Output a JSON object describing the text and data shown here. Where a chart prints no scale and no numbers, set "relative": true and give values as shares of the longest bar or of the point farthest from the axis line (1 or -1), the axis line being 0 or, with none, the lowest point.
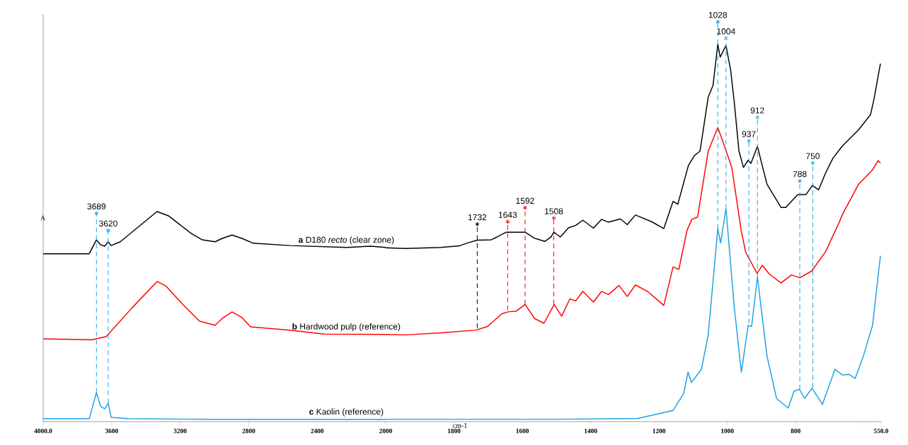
{
  "chart_data": [
    {
      "type": "line",
      "relative": true,
      "tick_labels": "x",
      "ylabel": "A",
      "xlim": [
        4000,
        2000
      ],
      "xticks": [
        {
          "value": 4000,
          "label": "4000.0"
        },
        3600,
        3200,
        2800,
        2400,
        2000
      ],
      "series": [
        {
          "name": "**a** D180 *recto* (clear zone)",
          "color": "#000000",
          "x": [
            4000,
            3731,
            3689,
            3665,
            3641,
            3620,
            3603,
            3550,
            3335,
            3269,
            3136,
            3070,
            2996,
            2955,
            2897,
            2839,
            2773,
            2558,
            2227,
            2087,
            2000
          ],
          "values": [
            0.799,
            0.799,
            0.865,
            0.842,
            0.835,
            0.856,
            0.838,
            0.856,
            1.0,
            0.98,
            0.896,
            0.865,
            0.856,
            0.872,
            0.888,
            0.872,
            0.849,
            0.838,
            0.829,
            0.835,
            0.829
          ]
        },
        {
          "name": "**b** Hardwood pulp (reference)",
          "color": "#ff0000",
          "x": [
            4000,
            3715,
            3632,
            3483,
            3335,
            3285,
            3186,
            3087,
            2996,
            2955,
            2897,
            2839,
            2789,
            2558,
            2360,
            2000
          ],
          "values": [
            0.394,
            0.39,
            0.405,
            0.54,
            0.667,
            0.647,
            0.559,
            0.478,
            0.459,
            0.491,
            0.522,
            0.495,
            0.451,
            0.435,
            0.417,
            0.415
          ]
        },
        {
          "name": "**c** Kaolin (reference)",
          "color": "#1da1e2",
          "x": [
            4000,
            3731,
            3689,
            3665,
            3641,
            3620,
            3603,
            3500,
            3000,
            2500,
            2000
          ],
          "values": [
            0.014,
            0.014,
            0.138,
            0.074,
            0.061,
            0.088,
            0.02,
            0.014,
            0.011,
            0.011,
            0.011
          ]
        },
        {
          "name": "3689",
          "color": "#1da1e2",
          "x": [
            3689,
            3689
          ],
          "values": [
            0.991,
            0.138
          ],
          "line_style": "dashed",
          "marker": "cross"
        },
        {
          "name": "3620",
          "color": "#1da1e2",
          "x": [
            3620,
            3620
          ],
          "values": [
            0.91,
            0.088
          ],
          "line_style": "dashed",
          "marker": "cross"
        }
      ]
    },
    {
      "type": "line",
      "relative": true,
      "tick_labels": "x",
      "xlabel": "cm-1",
      "xlim": [
        2000,
        550
      ],
      "xticks": [
        1800,
        1600,
        1400,
        1200,
        1000,
        800,
        {
          "value": 600,
          "label": null
        },
        {
          "value": 550,
          "label": "550.0"
        }
      ],
      "series": [
        {
          "color": "#000000",
          "x": [
            2000,
            1942,
            1839,
            1784,
            1757,
            1732,
            1691,
            1674,
            1647,
            1592,
            1565,
            1534,
            1516,
            1508,
            1489,
            1465,
            1444,
            1423,
            1392,
            1368,
            1348,
            1313,
            1293,
            1269,
            1221,
            1186,
            1159,
            1145,
            1114,
            1097,
            1080,
            1056,
            1042,
            1028,
            1021,
            1004,
            990,
            980,
            966,
            953,
            939,
            931,
            912,
            898,
            884,
            843,
            829,
            794,
            770,
            751,
            733,
            712,
            691,
            664,
            616,
            581,
            571,
            552
          ],
          "values": [
            0.435,
            0.433,
            0.436,
            0.44,
            0.448,
            0.454,
            0.455,
            0.462,
            0.474,
            0.474,
            0.459,
            0.451,
            0.462,
            0.474,
            0.462,
            0.485,
            0.491,
            0.504,
            0.484,
            0.506,
            0.499,
            0.507,
            0.493,
            0.517,
            0.5,
            0.483,
            0.551,
            0.544,
            0.641,
            0.665,
            0.677,
            0.812,
            0.841,
            0.944,
            0.912,
            0.941,
            0.877,
            0.801,
            0.677,
            0.636,
            0.654,
            0.646,
            0.689,
            0.641,
            0.594,
            0.536,
            0.536,
            0.568,
            0.568,
            0.591,
            0.58,
            0.623,
            0.659,
            0.689,
            0.73,
            0.768,
            0.806,
            0.896
          ]
        },
        {
          "color": "#ff0000",
          "x": [
            2000,
            1942,
            1839,
            1736,
            1702,
            1660,
            1640,
            1619,
            1592,
            1564,
            1537,
            1507,
            1485,
            1461,
            1444,
            1423,
            1392,
            1368,
            1348,
            1317,
            1293,
            1269,
            1234,
            1186,
            1159,
            1142,
            1118,
            1104,
            1087,
            1056,
            1028,
            1008,
            987,
            959,
            946,
            913,
            898,
            877,
            843,
            812,
            788,
            753,
            712,
            671,
            664,
            616,
            575,
            559,
            552
          ],
          "values": [
            0.218,
            0.217,
            0.222,
            0.229,
            0.238,
            0.27,
            0.275,
            0.276,
            0.293,
            0.258,
            0.246,
            0.293,
            0.264,
            0.307,
            0.302,
            0.326,
            0.299,
            0.326,
            0.318,
            0.341,
            0.313,
            0.342,
            0.326,
            0.291,
            0.387,
            0.381,
            0.479,
            0.506,
            0.512,
            0.677,
            0.736,
            0.688,
            0.636,
            0.476,
            0.423,
            0.371,
            0.391,
            0.369,
            0.347,
            0.367,
            0.36,
            0.377,
            0.426,
            0.502,
            0.517,
            0.594,
            0.63,
            0.653,
            0.647
          ]
        },
        {
          "color": "#1da1e2",
          "x": [
            2000,
            1500,
            1262,
            1159,
            1128,
            1115,
            1105,
            1076,
            1056,
            1028,
            1020,
            1004,
            980,
            959,
            939,
            929,
            912,
            884,
            856,
            822,
            805,
            789,
            774,
            752,
            722,
            685,
            664,
            643,
            626,
            602,
            575,
            552
          ],
          "values": [
            0.006,
            0.006,
            0.008,
            0.028,
            0.07,
            0.124,
            0.098,
            0.131,
            0.217,
            0.483,
            0.447,
            0.533,
            0.288,
            0.124,
            0.241,
            0.238,
            0.362,
            0.164,
            0.058,
            0.034,
            0.076,
            0.081,
            0.058,
            0.084,
            0.043,
            0.131,
            0.117,
            0.118,
            0.108,
            0.164,
            0.241,
            0.415
          ]
        },
        {
          "name": "1732",
          "color": "#000000",
          "x": [
            1732,
            1732
          ],
          "values": [
            0.494,
            0.234
          ],
          "line_style": "dashed",
          "marker": "cross"
        },
        {
          "name": "1643",
          "color": "#ff0000",
          "x": [
            1643,
            1643
          ],
          "values": [
            0.5,
            0.279
          ],
          "line_style": "dashed",
          "marker": "cross"
        },
        {
          "name": "1592",
          "color": "#ff0000",
          "x": [
            1592,
            1592
          ],
          "values": [
            0.535,
            0.293
          ],
          "line_style": "dashed",
          "marker": "cross"
        },
        {
          "name": "1508",
          "color": "#ff0000",
          "x": [
            1508,
            1508
          ],
          "values": [
            0.509,
            0.293
          ],
          "line_style": "dashed",
          "marker": "cross"
        },
        {
          "name": "1028",
          "color": "#1da1e2",
          "x": [
            1028,
            1028
          ],
          "values": [
            1.0,
            0.483
          ],
          "line_style": "dashed",
          "marker": "cross"
        },
        {
          "name": "1004",
          "color": "#1da1e2",
          "x": [
            1004,
            1004
          ],
          "values": [
            0.959,
            0.533
          ],
          "line_style": "dashed",
          "marker": "cross"
        },
        {
          "name": "937",
          "color": "#1da1e2",
          "x": [
            937,
            937
          ],
          "values": [
            0.702,
            0.246
          ],
          "line_style": "dashed",
          "marker": "cross"
        },
        {
          "name": "912",
          "color": "#1da1e2",
          "x": [
            912,
            912
          ],
          "values": [
            0.761,
            0.362
          ],
          "line_style": "dashed",
          "marker": "cross"
        },
        {
          "name": "788",
          "color": "#1da1e2",
          "x": [
            788,
            788
          ],
          "values": [
            0.602,
            0.081
          ],
          "line_style": "dashed",
          "marker": "cross"
        },
        {
          "name": "750",
          "color": "#1da1e2",
          "x": [
            750,
            750
          ],
          "values": [
            0.647,
            0.085
          ],
          "line_style": "dashed",
          "marker": "cross"
        }
      ]
    }
  ]
}
